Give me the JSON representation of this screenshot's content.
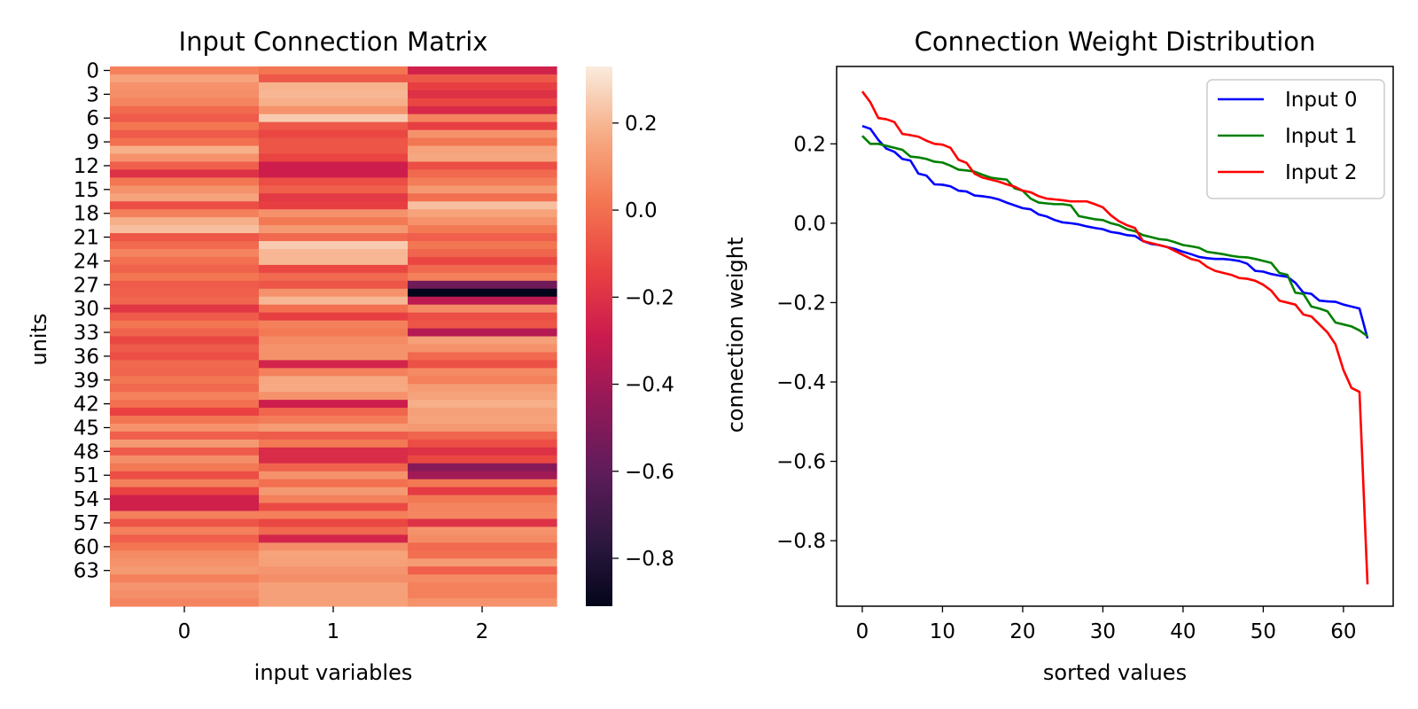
{
  "chart_data": [
    {
      "type": "heatmap",
      "title": "Input Connection Matrix",
      "xlabel": "input variables",
      "ylabel": "units",
      "columns": [
        "0",
        "1",
        "2"
      ],
      "row_tick_labels": [
        "0",
        "3",
        "6",
        "9",
        "12",
        "15",
        "18",
        "21",
        "24",
        "27",
        "30",
        "33",
        "36",
        "39",
        "42",
        "45",
        "48",
        "51",
        "54",
        "57",
        "60",
        "63"
      ],
      "colorbar": {
        "range": [
          -0.91,
          0.33
        ],
        "ticks": [
          0.2,
          0.0,
          -0.2,
          -0.4,
          -0.6,
          -0.8
        ],
        "colormap": "rocket"
      },
      "values": [
        [
          0.05,
          0.02,
          -0.26
        ],
        [
          0.15,
          -0.07,
          -0.07
        ],
        [
          0.1,
          0.19,
          -0.15
        ],
        [
          0.09,
          0.2,
          -0.2
        ],
        [
          0.06,
          0.18,
          -0.12
        ],
        [
          -0.02,
          0.1,
          -0.23
        ],
        [
          -0.06,
          0.25,
          0.06
        ],
        [
          0.02,
          -0.07,
          -0.15
        ],
        [
          -0.06,
          -0.12,
          0.1
        ],
        [
          0.0,
          -0.08,
          0.02
        ],
        [
          0.18,
          -0.08,
          0.15
        ],
        [
          0.1,
          -0.13,
          0.16
        ],
        [
          -0.05,
          -0.28,
          -0.1
        ],
        [
          -0.2,
          -0.28,
          -0.02
        ],
        [
          0.02,
          -0.1,
          0.04
        ],
        [
          0.1,
          -0.05,
          0.12
        ],
        [
          0.15,
          -0.17,
          0.0
        ],
        [
          -0.1,
          -0.15,
          0.22
        ],
        [
          0.05,
          0.1,
          0.15
        ],
        [
          0.18,
          0.03,
          0.1
        ],
        [
          0.22,
          0.12,
          0.03
        ],
        [
          -0.08,
          -0.02,
          -0.05
        ],
        [
          -0.02,
          0.25,
          0.02
        ],
        [
          0.06,
          0.2,
          -0.03
        ],
        [
          0.0,
          0.2,
          -0.12
        ],
        [
          -0.04,
          -0.12,
          -0.02
        ],
        [
          0.02,
          -0.02,
          0.05
        ],
        [
          -0.06,
          -0.08,
          -0.55
        ],
        [
          -0.05,
          0.1,
          -0.91
        ],
        [
          -0.03,
          0.2,
          -0.33
        ],
        [
          -0.18,
          0.0,
          0.08
        ],
        [
          -0.06,
          -0.15,
          -0.1
        ],
        [
          0.02,
          0.05,
          -0.08
        ],
        [
          -0.04,
          0.03,
          -0.35
        ],
        [
          -0.12,
          0.08,
          0.14
        ],
        [
          -0.06,
          0.1,
          0.1
        ],
        [
          -0.1,
          0.1,
          -0.02
        ],
        [
          -0.02,
          -0.25,
          -0.09
        ],
        [
          -0.03,
          0.05,
          0.08
        ],
        [
          0.02,
          0.16,
          0.05
        ],
        [
          -0.02,
          0.17,
          0.13
        ],
        [
          0.05,
          0.1,
          0.15
        ],
        [
          0.0,
          -0.28,
          0.18
        ],
        [
          -0.14,
          -0.03,
          0.14
        ],
        [
          0.02,
          0.04,
          0.15
        ],
        [
          0.1,
          0.13,
          0.12
        ],
        [
          -0.05,
          -0.06,
          -0.03
        ],
        [
          0.12,
          0.03,
          -0.1
        ],
        [
          -0.06,
          -0.22,
          -0.2
        ],
        [
          0.09,
          -0.22,
          -0.12
        ],
        [
          0.03,
          -0.04,
          -0.48
        ],
        [
          -0.1,
          0.1,
          -0.4
        ],
        [
          0.05,
          0.0,
          0.03
        ],
        [
          -0.14,
          0.12,
          -0.16
        ],
        [
          -0.27,
          0.05,
          0.03
        ],
        [
          -0.27,
          -0.11,
          0.06
        ],
        [
          0.05,
          0.05,
          0.07
        ],
        [
          -0.08,
          -0.12,
          -0.2
        ],
        [
          0.05,
          -0.02,
          0.1
        ],
        [
          -0.05,
          -0.25,
          0.08
        ],
        [
          0.02,
          0.09,
          -0.02
        ],
        [
          0.08,
          0.15,
          0.0
        ],
        [
          0.1,
          0.14,
          0.13
        ],
        [
          0.12,
          0.11,
          -0.05
        ],
        [
          0.05,
          0.09,
          0.08
        ],
        [
          0.11,
          0.14,
          0.05
        ],
        [
          0.09,
          0.14,
          0.05
        ],
        [
          0.06,
          0.14,
          0.1
        ]
      ]
    },
    {
      "type": "line",
      "title": "Connection Weight Distribution",
      "xlabel": "sorted values",
      "ylabel": "connection weight",
      "xlim": [
        -3.2,
        66.2
      ],
      "ylim": [
        -0.965,
        0.395
      ],
      "xticks": [
        0,
        10,
        20,
        30,
        40,
        50,
        60
      ],
      "yticks": [
        0.2,
        0.0,
        -0.2,
        -0.4,
        -0.6,
        -0.8
      ],
      "legend": "top-right",
      "series": [
        {
          "name": "Input 0",
          "color": "#0000ff",
          "values": [
            0.245,
            0.238,
            0.21,
            0.188,
            0.18,
            0.162,
            0.158,
            0.125,
            0.12,
            0.098,
            0.097,
            0.093,
            0.082,
            0.08,
            0.07,
            0.068,
            0.065,
            0.06,
            0.052,
            0.045,
            0.038,
            0.035,
            0.022,
            0.017,
            0.008,
            0.002,
            0.0,
            -0.003,
            -0.008,
            -0.012,
            -0.015,
            -0.022,
            -0.025,
            -0.03,
            -0.032,
            -0.045,
            -0.052,
            -0.055,
            -0.06,
            -0.065,
            -0.072,
            -0.078,
            -0.085,
            -0.088,
            -0.09,
            -0.09,
            -0.092,
            -0.095,
            -0.102,
            -0.12,
            -0.122,
            -0.128,
            -0.132,
            -0.135,
            -0.15,
            -0.175,
            -0.178,
            -0.195,
            -0.197,
            -0.198,
            -0.205,
            -0.21,
            -0.215,
            -0.29
          ]
        },
        {
          "name": "Input 1",
          "color": "#008000",
          "values": [
            0.22,
            0.2,
            0.2,
            0.195,
            0.19,
            0.185,
            0.168,
            0.166,
            0.162,
            0.155,
            0.153,
            0.145,
            0.135,
            0.133,
            0.13,
            0.122,
            0.115,
            0.112,
            0.11,
            0.088,
            0.082,
            0.062,
            0.052,
            0.05,
            0.048,
            0.048,
            0.045,
            0.018,
            0.014,
            0.01,
            0.008,
            0.0,
            -0.005,
            -0.015,
            -0.02,
            -0.03,
            -0.035,
            -0.04,
            -0.042,
            -0.048,
            -0.055,
            -0.058,
            -0.062,
            -0.072,
            -0.075,
            -0.078,
            -0.082,
            -0.085,
            -0.086,
            -0.09,
            -0.095,
            -0.1,
            -0.125,
            -0.13,
            -0.175,
            -0.178,
            -0.21,
            -0.215,
            -0.222,
            -0.25,
            -0.255,
            -0.26,
            -0.27,
            -0.285
          ]
        },
        {
          "name": "Input 2",
          "color": "#ff0000",
          "values": [
            0.332,
            0.305,
            0.265,
            0.262,
            0.255,
            0.225,
            0.222,
            0.218,
            0.208,
            0.2,
            0.198,
            0.19,
            0.16,
            0.152,
            0.125,
            0.115,
            0.11,
            0.105,
            0.098,
            0.092,
            0.082,
            0.078,
            0.068,
            0.062,
            0.06,
            0.058,
            0.055,
            0.055,
            0.055,
            0.048,
            0.04,
            0.02,
            0.005,
            -0.005,
            -0.012,
            -0.045,
            -0.05,
            -0.055,
            -0.06,
            -0.07,
            -0.08,
            -0.09,
            -0.095,
            -0.11,
            -0.12,
            -0.125,
            -0.13,
            -0.138,
            -0.14,
            -0.145,
            -0.155,
            -0.17,
            -0.195,
            -0.2,
            -0.205,
            -0.23,
            -0.235,
            -0.255,
            -0.275,
            -0.305,
            -0.37,
            -0.415,
            -0.425,
            -0.91
          ]
        }
      ]
    }
  ]
}
